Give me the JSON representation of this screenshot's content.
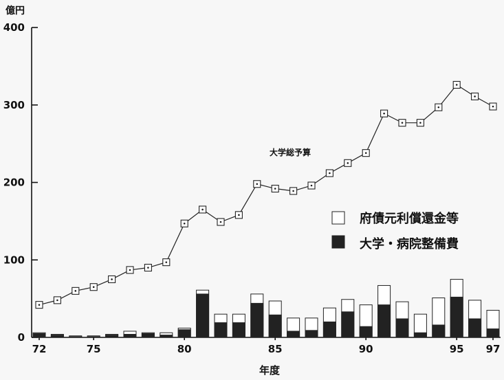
{
  "chart_data": {
    "type": "bar",
    "unit_label": "億円",
    "xlabel": "年度",
    "ylim": [
      0,
      400
    ],
    "y_ticks": [
      0,
      100,
      200,
      300,
      400
    ],
    "x_ticks": [
      {
        "x": 72,
        "label": "72"
      },
      {
        "x": 75,
        "label": "75"
      },
      {
        "x": 80,
        "label": "80"
      },
      {
        "x": 85,
        "label": "85"
      },
      {
        "x": 90,
        "label": "90"
      },
      {
        "x": 95,
        "label": "95"
      },
      {
        "x": 97,
        "label": "97"
      }
    ],
    "years": [
      72,
      73,
      74,
      75,
      76,
      77,
      78,
      79,
      80,
      81,
      82,
      83,
      84,
      85,
      86,
      87,
      88,
      89,
      90,
      91,
      92,
      93,
      94,
      95,
      96,
      97
    ],
    "line_series": {
      "name": "大学総予算",
      "values": [
        42,
        48,
        60,
        65,
        75,
        87,
        90,
        97,
        147,
        165,
        149,
        158,
        198,
        192,
        189,
        196,
        212,
        225,
        238,
        289,
        277,
        277,
        297,
        326,
        311,
        298
      ]
    },
    "bar_series": [
      {
        "name": "府債元利償還金等",
        "legend_label": "府債元利償還金等",
        "values": [
          6,
          4,
          2,
          2,
          4,
          8,
          6,
          6,
          12,
          61,
          30,
          30,
          56,
          47,
          25,
          25,
          38,
          49,
          42,
          67,
          46,
          30,
          51,
          75,
          48,
          35
        ]
      },
      {
        "name": "大学・病院整備費",
        "legend_label": "大学・病院整備費",
        "values": [
          5,
          3,
          1,
          1,
          3,
          4,
          5,
          3,
          10,
          56,
          19,
          19,
          44,
          29,
          8,
          9,
          20,
          33,
          14,
          42,
          24,
          6,
          16,
          52,
          24,
          11
        ]
      }
    ],
    "colors": {
      "total": "#ffffff",
      "univ": "#222222",
      "line": "#222222"
    },
    "grid": false,
    "legend_position": "right"
  }
}
